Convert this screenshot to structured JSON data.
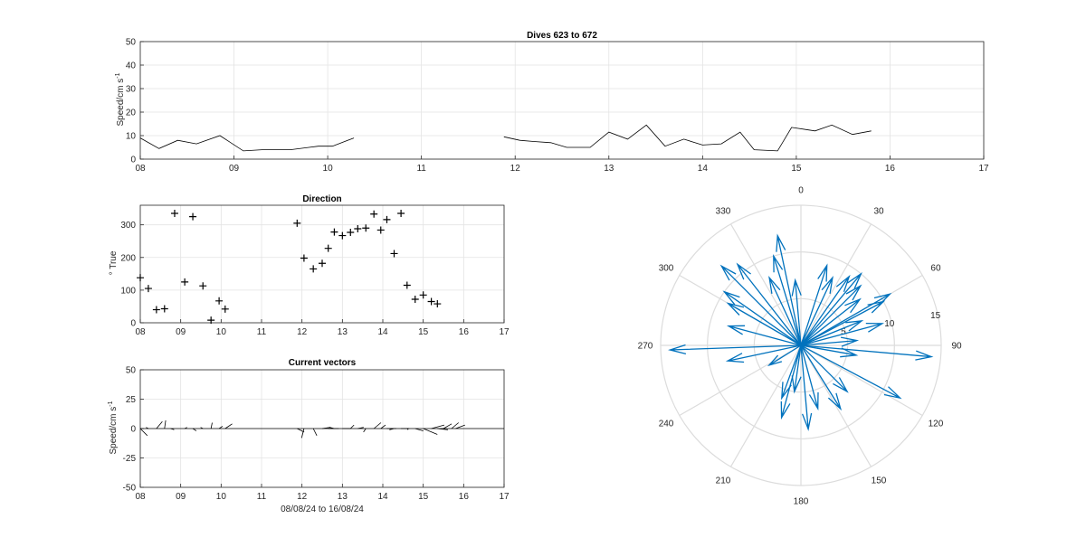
{
  "chart_data": [
    {
      "id": "speed",
      "type": "line",
      "title": "Dives 623 to 672",
      "ylabel": "Speed/cm s",
      "ylabel_sup": "-1",
      "xlim": [
        0,
        9
      ],
      "ylim": [
        0,
        50
      ],
      "xticks": [
        0,
        1,
        2,
        3,
        4,
        5,
        6,
        7,
        8,
        9
      ],
      "xtick_labels": [
        "08",
        "09",
        "10",
        "11",
        "12",
        "13",
        "14",
        "15",
        "16",
        "17"
      ],
      "yticks": [
        0,
        10,
        20,
        30,
        40,
        50
      ],
      "grid": true,
      "line_color": "#000000",
      "segments": [
        [
          [
            0.0,
            9
          ],
          [
            0.2,
            4.5
          ],
          [
            0.4,
            8
          ],
          [
            0.6,
            6.5
          ],
          [
            0.85,
            10
          ],
          [
            1.1,
            3.5
          ],
          [
            1.3,
            4
          ],
          [
            1.5,
            4
          ],
          [
            1.6,
            4
          ],
          [
            1.8,
            5
          ],
          [
            1.9,
            5.5
          ],
          [
            2.05,
            5.5
          ],
          [
            2.28,
            9
          ]
        ],
        [
          [
            3.88,
            9.5
          ],
          [
            4.05,
            8
          ],
          [
            4.2,
            7.5
          ],
          [
            4.38,
            7
          ],
          [
            4.55,
            5
          ],
          [
            4.8,
            5
          ],
          [
            5.0,
            11.5
          ],
          [
            5.2,
            8.5
          ],
          [
            5.4,
            14.5
          ],
          [
            5.6,
            5.5
          ],
          [
            5.8,
            8.5
          ],
          [
            6.0,
            6
          ],
          [
            6.2,
            6.5
          ],
          [
            6.4,
            11.5
          ],
          [
            6.55,
            4
          ],
          [
            6.8,
            3.5
          ],
          [
            6.95,
            13.5
          ],
          [
            7.2,
            12
          ],
          [
            7.38,
            14.5
          ],
          [
            7.6,
            10.5
          ],
          [
            7.8,
            12
          ]
        ]
      ]
    },
    {
      "id": "direction",
      "type": "scatter",
      "title": "Direction",
      "ylabel": "° True",
      "xlim": [
        0,
        9
      ],
      "ylim": [
        0,
        360
      ],
      "xticks": [
        0,
        1,
        2,
        3,
        4,
        5,
        6,
        7,
        8,
        9
      ],
      "xtick_labels": [
        "08",
        "09",
        "10",
        "11",
        "12",
        "13",
        "14",
        "15",
        "16",
        "17"
      ],
      "yticks": [
        0,
        100,
        200,
        300
      ],
      "grid": true,
      "marker": "+",
      "points": [
        [
          0.0,
          138
        ],
        [
          0.2,
          105
        ],
        [
          0.4,
          40
        ],
        [
          0.6,
          43
        ],
        [
          0.85,
          335
        ],
        [
          1.1,
          125
        ],
        [
          1.3,
          325
        ],
        [
          1.55,
          113
        ],
        [
          1.75,
          8
        ],
        [
          1.95,
          67
        ],
        [
          2.1,
          42
        ],
        [
          3.88,
          305
        ],
        [
          4.05,
          198
        ],
        [
          4.28,
          165
        ],
        [
          4.5,
          182
        ],
        [
          4.65,
          228
        ],
        [
          4.8,
          278
        ],
        [
          5.0,
          267
        ],
        [
          5.2,
          277
        ],
        [
          5.38,
          288
        ],
        [
          5.58,
          290
        ],
        [
          5.78,
          333
        ],
        [
          5.95,
          284
        ],
        [
          6.1,
          316
        ],
        [
          6.28,
          212
        ],
        [
          6.45,
          335
        ],
        [
          6.6,
          115
        ],
        [
          6.8,
          72
        ],
        [
          7.0,
          85
        ],
        [
          7.2,
          65
        ],
        [
          7.35,
          58
        ]
      ]
    },
    {
      "id": "vectors",
      "type": "line",
      "title": "Current vectors",
      "ylabel": "Speed/cm s",
      "ylabel_sup": "-1",
      "xlabel": "08/08/24 to 16/08/24",
      "xlim": [
        0,
        9
      ],
      "ylim": [
        -50,
        50
      ],
      "xticks": [
        0,
        1,
        2,
        3,
        4,
        5,
        6,
        7,
        8,
        9
      ],
      "xtick_labels": [
        "08",
        "09",
        "10",
        "11",
        "12",
        "13",
        "14",
        "15",
        "16",
        "17"
      ],
      "yticks": [
        -50,
        -25,
        0,
        25,
        50
      ],
      "grid": true,
      "sticks": [
        [
          0.0,
          6,
          -6
        ],
        [
          0.2,
          -2,
          1
        ],
        [
          0.4,
          5,
          6
        ],
        [
          0.6,
          1,
          7
        ],
        [
          0.75,
          3,
          -1
        ],
        [
          1.1,
          2,
          1
        ],
        [
          1.3,
          3,
          -2
        ],
        [
          1.55,
          -2,
          1
        ],
        [
          1.75,
          1,
          5
        ],
        [
          1.95,
          3,
          2
        ],
        [
          2.1,
          6,
          4
        ],
        [
          3.88,
          6,
          -3
        ],
        [
          4.05,
          -2,
          -8
        ],
        [
          4.28,
          3,
          -6
        ],
        [
          4.5,
          7,
          1
        ],
        [
          4.65,
          9,
          0
        ],
        [
          4.8,
          -4,
          1
        ],
        [
          5.0,
          7,
          0
        ],
        [
          5.2,
          3,
          3
        ],
        [
          5.38,
          5,
          1
        ],
        [
          5.58,
          -2,
          -3
        ],
        [
          5.78,
          6,
          5
        ],
        [
          5.95,
          4,
          3
        ],
        [
          6.1,
          8,
          0
        ],
        [
          6.28,
          -4,
          -1
        ],
        [
          6.45,
          7,
          0
        ],
        [
          6.6,
          1,
          -1
        ],
        [
          6.8,
          7,
          -2
        ],
        [
          7.0,
          12,
          -5
        ],
        [
          7.2,
          11,
          3
        ],
        [
          7.35,
          9,
          -1
        ],
        [
          7.5,
          7,
          4
        ],
        [
          7.7,
          6,
          5
        ],
        [
          7.8,
          8,
          3
        ]
      ]
    },
    {
      "id": "polar",
      "type": "scatter",
      "rlim": [
        0,
        15
      ],
      "rticks": [
        5,
        10,
        15
      ],
      "theta_ticks": [
        0,
        30,
        60,
        90,
        120,
        150,
        180,
        210,
        240,
        270,
        300,
        330
      ],
      "grid": true,
      "color": "#0072bd",
      "vectors": [
        [
          18,
          9
        ],
        [
          25,
          8
        ],
        [
          35,
          9
        ],
        [
          40,
          10
        ],
        [
          45,
          9
        ],
        [
          52,
          8
        ],
        [
          60,
          11
        ],
        [
          62,
          10
        ],
        [
          68,
          7
        ],
        [
          75,
          9
        ],
        [
          85,
          6
        ],
        [
          95,
          14
        ],
        [
          100,
          6
        ],
        [
          118,
          12
        ],
        [
          135,
          7
        ],
        [
          148,
          8
        ],
        [
          165,
          7
        ],
        [
          175,
          9
        ],
        [
          188,
          5
        ],
        [
          195,
          8
        ],
        [
          200,
          6
        ],
        [
          238,
          4
        ],
        [
          258,
          8
        ],
        [
          268,
          14
        ],
        [
          285,
          8
        ],
        [
          300,
          9
        ],
        [
          305,
          10
        ],
        [
          315,
          12
        ],
        [
          322,
          11
        ],
        [
          335,
          8
        ],
        [
          343,
          10
        ],
        [
          348,
          12
        ],
        [
          355,
          7
        ]
      ]
    }
  ]
}
